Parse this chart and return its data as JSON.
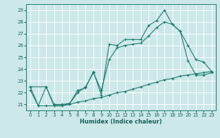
{
  "xlabel": "Humidex (Indice chaleur)",
  "bg_color": "#cce8e8",
  "grid_color": "#ffffff",
  "line_color": "#1a7a6e",
  "xlim": [
    -0.5,
    23.5
  ],
  "ylim": [
    20.5,
    29.5
  ],
  "xticks": [
    0,
    1,
    2,
    3,
    4,
    5,
    6,
    7,
    8,
    9,
    10,
    11,
    12,
    13,
    14,
    15,
    16,
    17,
    18,
    19,
    20,
    21,
    22,
    23
  ],
  "yticks": [
    21,
    22,
    23,
    24,
    25,
    26,
    27,
    28,
    29
  ],
  "line1_x": [
    0,
    1,
    2,
    3,
    4,
    5,
    6,
    7,
    8,
    9,
    10,
    11,
    12,
    13,
    14,
    15,
    16,
    17,
    18,
    19,
    20,
    21,
    22,
    23
  ],
  "line1_y": [
    22.5,
    20.9,
    22.5,
    20.9,
    20.9,
    21.1,
    22.2,
    22.4,
    23.8,
    21.8,
    26.1,
    26.0,
    26.5,
    26.5,
    26.5,
    27.7,
    28.1,
    29.0,
    27.8,
    27.2,
    24.7,
    23.5,
    23.5,
    23.7
  ],
  "line2_x": [
    0,
    2,
    3,
    4,
    5,
    6,
    7,
    8,
    9,
    10,
    11,
    12,
    13,
    14,
    15,
    16,
    17,
    18,
    19,
    20,
    21,
    22,
    23
  ],
  "line2_y": [
    22.5,
    22.5,
    21.0,
    21.0,
    21.1,
    22.0,
    22.5,
    23.7,
    22.2,
    24.8,
    25.8,
    26.0,
    26.1,
    26.2,
    26.8,
    27.5,
    28.0,
    27.8,
    27.2,
    26.0,
    24.8,
    24.6,
    23.8
  ],
  "line3_x": [
    0,
    1,
    2,
    3,
    4,
    5,
    6,
    7,
    8,
    9,
    10,
    11,
    12,
    13,
    14,
    15,
    16,
    17,
    18,
    19,
    20,
    21,
    22,
    23
  ],
  "line3_y": [
    22.2,
    20.9,
    20.9,
    20.9,
    20.9,
    21.0,
    21.2,
    21.3,
    21.5,
    21.6,
    21.8,
    22.0,
    22.1,
    22.3,
    22.5,
    22.7,
    22.9,
    23.1,
    23.2,
    23.4,
    23.5,
    23.6,
    23.7,
    23.8
  ]
}
